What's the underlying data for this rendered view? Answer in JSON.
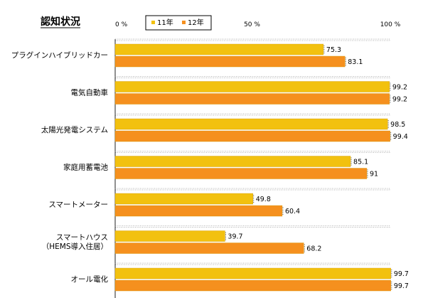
{
  "header": {
    "title": "認知状況"
  },
  "chart_data": {
    "type": "bar",
    "orientation": "horizontal",
    "categories": [
      [
        "プラグインハイブリッドカー"
      ],
      [
        "電気自動車"
      ],
      [
        "太陽光発電システム"
      ],
      [
        "家庭用蓄電池"
      ],
      [
        "スマートメーター"
      ],
      [
        "スマートハウス",
        "（HEMS導入住居）"
      ],
      [
        "オール電化"
      ]
    ],
    "series": [
      {
        "name": "11年",
        "color": "#f2c10f",
        "values": [
          75.3,
          99.2,
          98.5,
          85.1,
          49.8,
          39.7,
          99.7
        ]
      },
      {
        "name": "12年",
        "color": "#f5901e",
        "values": [
          83.1,
          99.2,
          99.4,
          91,
          60.4,
          68.2,
          99.7
        ]
      }
    ],
    "value_labels": [
      [
        "75.3",
        "99.2",
        "98.5",
        "85.1",
        "49.8",
        "39.7",
        "99.7"
      ],
      [
        "83.1",
        "99.2",
        "99.4",
        "91",
        "60.4",
        "68.2",
        "99.7"
      ]
    ],
    "xlim": [
      0,
      100
    ],
    "tick_labels": [
      "0 %",
      "50 %",
      "100 %"
    ],
    "tick_values": [
      0,
      50,
      100
    ],
    "legend": "top",
    "grid": false
  }
}
